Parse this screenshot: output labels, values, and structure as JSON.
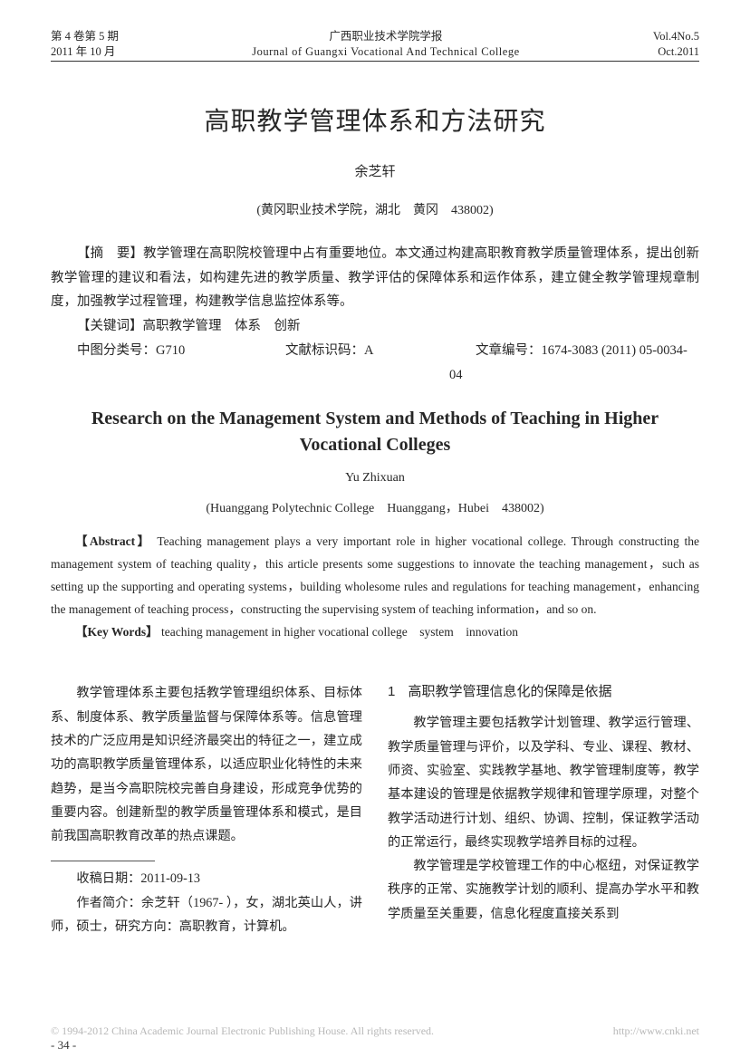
{
  "header": {
    "left_line1": "第 4 卷第 5 期",
    "left_line2": "2011 年 10 月",
    "center_cn": "广西职业技术学院学报",
    "center_en": "Journal of Guangxi Vocational And Technical College",
    "right_line1": "Vol.4No.5",
    "right_line2": "Oct.2011"
  },
  "title_cn": "高职教学管理体系和方法研究",
  "author_cn": "余芝轩",
  "affil_cn": "(黄冈职业技术学院，湖北　黄冈　438002)",
  "abstract_cn_label": "【摘　要】",
  "abstract_cn": "教学管理在高职院校管理中占有重要地位。本文通过构建高职教育教学质量管理体系，提出创新教学管理的建议和看法，如构建先进的教学质量、教学评估的保障体系和运作体系，建立健全教学管理规章制度，加强教学过程管理，构建教学信息监控体系等。",
  "keywords_cn_label": "【关键词】",
  "keywords_cn": "高职教学管理　体系　创新",
  "clc_label": "中图分类号：",
  "clc": "G710",
  "doccode_label": "文献标识码：",
  "doccode": "A",
  "artno_label": "文章编号：",
  "artno": "1674-3083 (2011) 05-0034-04",
  "title_en": "Research on the Management System and Methods of Teaching in Higher Vocational Colleges",
  "author_en": "Yu Zhixuan",
  "affil_en": "(Huanggang Polytechnic College　Huanggang，Hubei　438002)",
  "abstract_en_label": "【Abstract】",
  "abstract_en": "Teaching management plays a very important role in higher vocational college. Through constructing the management system of teaching quality，this article presents some suggestions to innovate the teaching management，such as setting up the supporting and operating systems，building wholesome rules and regulations for teaching management，enhancing the management of teaching process，constructing the supervising system of teaching information，and so on.",
  "keywords_en_label": "【Key Words】",
  "keywords_en": "teaching management in higher vocational college　system　innovation",
  "body": {
    "left_p1": "教学管理体系主要包括教学管理组织体系、目标体系、制度体系、教学质量监督与保障体系等。信息管理技术的广泛应用是知识经济最突出的特征之一，建立成功的高职教学质量管理体系，以适应职业化特性的未来趋势，是当今高职院校完善自身建设，形成竞争优势的重要内容。创建新型的教学质量管理体系和模式，是目前我国高职教育改革的热点课题。",
    "section1_num": "1",
    "section1_title": "高职教学管理信息化的保障是依据",
    "right_p1": "教学管理主要包括教学计划管理、教学运行管理、教学质量管理与评价，以及学科、专业、课程、教材、师资、实验室、实践教学基地、教学管理制度等，教学基本建设的管理是依据教学规律和管理学原理，对整个教学活动进行计划、组织、协调、控制，保证教学活动的正常运行，最终实现教学培养目标的过程。",
    "right_p2": "教学管理是学校管理工作的中心枢纽，对保证教学秩序的正常、实施教学计划的顺利、提高办学水平和教学质量至关重要，信息化程度直接关系到"
  },
  "footnotes": {
    "received": "收稿日期：2011-09-13",
    "bio": "作者简介：余芝轩（1967- ），女，湖北英山人，讲师，硕士，研究方向：高职教育，计算机。"
  },
  "watermark": {
    "left": "© 1994-2012 China Academic Journal Electronic Publishing House. All rights reserved.",
    "right": "http://www.cnki.net"
  },
  "pagenum": "- 34 -"
}
